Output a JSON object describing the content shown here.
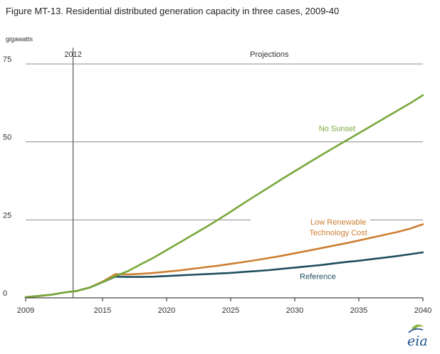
{
  "title": "Figure MT-13. Residential distributed generation capacity in three cases, 2009-40",
  "logo": {
    "text": "eia",
    "colors": {
      "green": "#8ab43e",
      "blue": "#1a4f8a"
    }
  },
  "chart_data": {
    "type": "line",
    "unit_label": "gigawatts",
    "ylim": [
      0,
      75
    ],
    "y_ticks": [
      0,
      25,
      50,
      75
    ],
    "xlim": [
      2009,
      2040
    ],
    "x_ticks": [
      2009,
      2015,
      2020,
      2025,
      2030,
      2035,
      2040
    ],
    "grid": true,
    "divider_year": 2012.7,
    "divider_label": "2012",
    "projections_label": "Projections",
    "x": [
      2009,
      2010,
      2011,
      2012,
      2013,
      2014,
      2015,
      2016,
      2017,
      2018,
      2019,
      2020,
      2021,
      2022,
      2023,
      2024,
      2025,
      2026,
      2027,
      2028,
      2029,
      2030,
      2031,
      2032,
      2033,
      2034,
      2035,
      2036,
      2037,
      2038,
      2039,
      2040
    ],
    "series": [
      {
        "name": "No Sunset",
        "color": "#77a83a",
        "label_x": 2020.8,
        "label_y": 53.5,
        "values": [
          0.2,
          0.6,
          1.0,
          1.7,
          2.2,
          3.3,
          5.0,
          7.0,
          8.6,
          10.8,
          12.9,
          15.3,
          17.7,
          20.1,
          22.5,
          25.0,
          27.6,
          30.3,
          32.9,
          35.5,
          38.1,
          40.6,
          43.1,
          45.6,
          48.0,
          50.4,
          52.8,
          55.2,
          57.6,
          60.0,
          62.4,
          65.0
        ]
      },
      {
        "name": "Low Renewable Technology Cost",
        "color": "#cd7f32",
        "label_x": 2020.9,
        "label_y": 23.5,
        "values": [
          0.2,
          0.6,
          1.0,
          1.7,
          2.2,
          3.3,
          5.2,
          7.6,
          7.5,
          7.7,
          8.0,
          8.4,
          8.8,
          9.3,
          9.8,
          10.3,
          10.9,
          11.5,
          12.1,
          12.8,
          13.5,
          14.3,
          15.1,
          15.9,
          16.7,
          17.5,
          18.4,
          19.3,
          20.2,
          21.1,
          22.2,
          23.6
        ]
      },
      {
        "name": "Reference",
        "color": "#1f4e5f",
        "label_x": 2019.3,
        "label_y": 6.0,
        "values": [
          0.2,
          0.6,
          1.0,
          1.7,
          2.2,
          3.3,
          5.0,
          6.8,
          6.7,
          6.7,
          6.8,
          7.0,
          7.2,
          7.4,
          7.6,
          7.8,
          8.0,
          8.3,
          8.6,
          8.9,
          9.3,
          9.7,
          10.1,
          10.5,
          11.0,
          11.5,
          11.9,
          12.4,
          12.9,
          13.4,
          14.0,
          14.6
        ]
      }
    ]
  }
}
